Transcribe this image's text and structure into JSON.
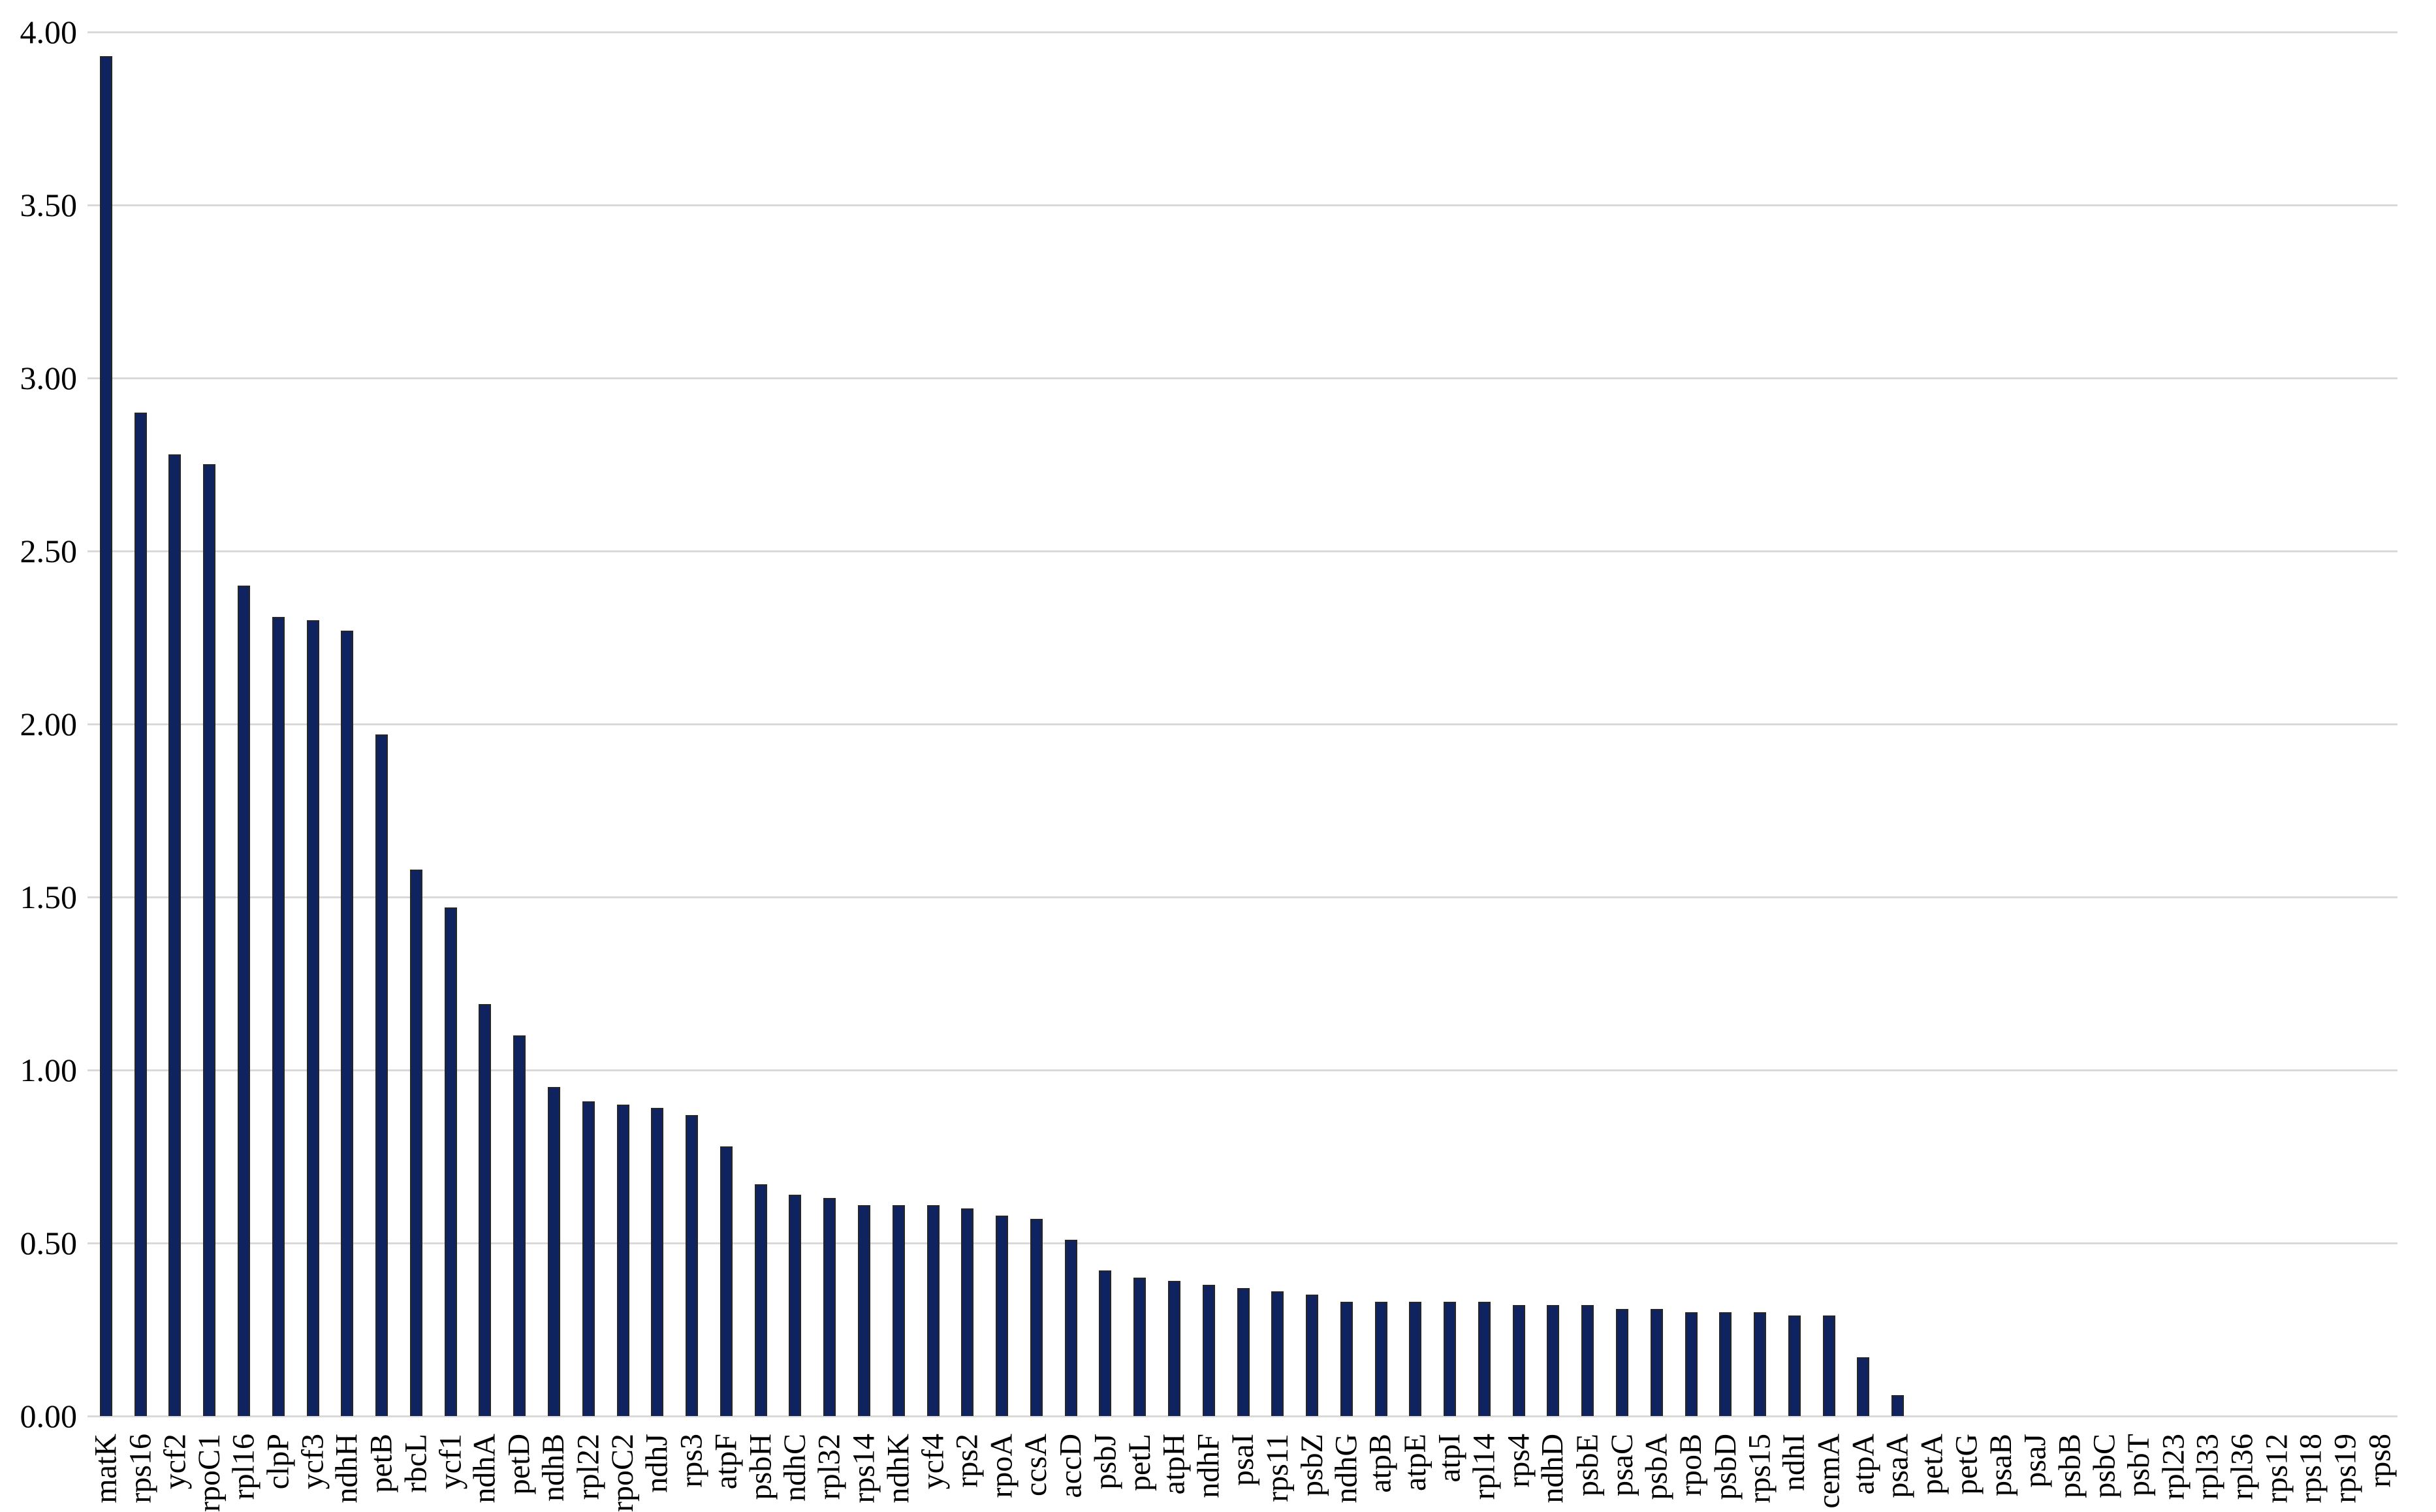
{
  "chart_data": {
    "type": "bar",
    "title": "",
    "xlabel": "",
    "ylabel": "",
    "categories": [
      "matK",
      "rps16",
      "ycf2",
      "rpoC1",
      "rpl16",
      "clpP",
      "ycf3",
      "ndhH",
      "petB",
      "rbcL",
      "ycf1",
      "ndhA",
      "petD",
      "ndhB",
      "rpl22",
      "rpoC2",
      "ndhJ",
      "rps3",
      "atpF",
      "psbH",
      "ndhC",
      "rpl32",
      "rps14",
      "ndhK",
      "ycf4",
      "rps2",
      "rpoA",
      "ccsA",
      "accD",
      "psbJ",
      "petL",
      "atpH",
      "ndhF",
      "psaI",
      "rps11",
      "psbZ",
      "ndhG",
      "atpB",
      "atpE",
      "atpI",
      "rpl14",
      "rps4",
      "ndhD",
      "psbE",
      "psaC",
      "psbA",
      "rpoB",
      "psbD",
      "rps15",
      "ndhI",
      "cemA",
      "atpA",
      "psaA",
      "petA",
      "petG",
      "psaB",
      "psaJ",
      "psbB",
      "psbC",
      "psbT",
      "rpl23",
      "rpl33",
      "rpl36",
      "rps12",
      "rps18",
      "rps19",
      "rps8"
    ],
    "values": [
      3.93,
      2.9,
      2.78,
      2.75,
      2.4,
      2.31,
      2.3,
      2.27,
      1.97,
      1.58,
      1.47,
      1.19,
      1.1,
      0.95,
      0.91,
      0.9,
      0.89,
      0.87,
      0.78,
      0.67,
      0.64,
      0.63,
      0.61,
      0.61,
      0.61,
      0.6,
      0.58,
      0.57,
      0.51,
      0.42,
      0.4,
      0.39,
      0.38,
      0.37,
      0.36,
      0.35,
      0.33,
      0.33,
      0.33,
      0.33,
      0.33,
      0.32,
      0.32,
      0.32,
      0.31,
      0.31,
      0.3,
      0.3,
      0.3,
      0.29,
      0.29,
      0.17,
      0.06,
      0.0,
      0.0,
      0.0,
      0.0,
      0.0,
      0.0,
      0.0,
      0.0,
      0.0,
      0.0,
      0.0,
      0.0,
      0.0,
      0.0
    ],
    "ylim": [
      0,
      4
    ],
    "ytick_step": 0.5,
    "ytick_labels": [
      "0.00",
      "0.50",
      "1.00",
      "1.50",
      "2.00",
      "2.50",
      "3.00",
      "3.50",
      "4.00"
    ],
    "grid": true,
    "legend": false,
    "x_label_rotation_deg": -90,
    "colors": {
      "bar_fill": "#0f2361",
      "bar_border": "#262626",
      "gridline": "#d9d9d9",
      "axis_text": "#000000",
      "background": "#ffffff"
    }
  }
}
